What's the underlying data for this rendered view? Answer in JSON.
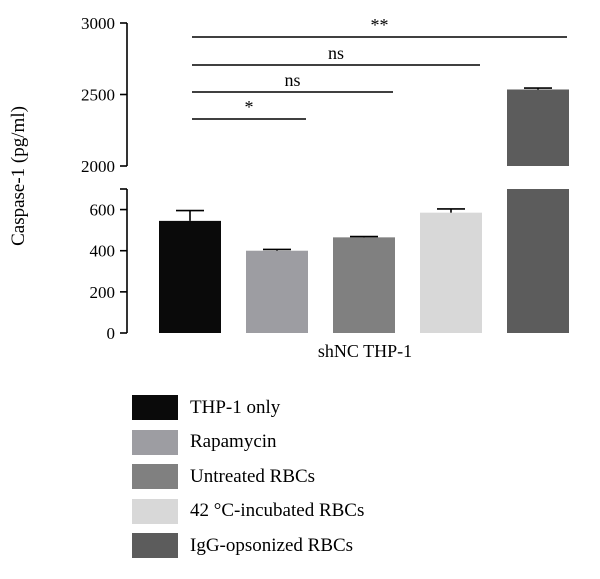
{
  "chart_data": {
    "type": "bar",
    "ylabel": "Caspase-1 (pg/ml)",
    "xlabel": "shNC THP-1",
    "broken_axis": {
      "lower_range": [
        0,
        700
      ],
      "upper_range": [
        2000,
        3000
      ],
      "lower_ticks": [
        0,
        200,
        400,
        600
      ],
      "upper_ticks": [
        2000,
        2500,
        3000
      ]
    },
    "series": [
      {
        "name": "THP-1 only",
        "value": 545,
        "error": 50,
        "color": "#0a0a0a"
      },
      {
        "name": "Rapamycin",
        "value": 400,
        "error": 6,
        "color": "#9d9da2"
      },
      {
        "name": "Untreated RBCs",
        "value": 465,
        "error": 4,
        "color": "#808080"
      },
      {
        "name": "42 °C-incubated RBCs",
        "value": 585,
        "error": 18,
        "color": "#d8d8d8"
      },
      {
        "name": "IgG-opsonized RBCs",
        "value": 2535,
        "error": 10,
        "color": "#5c5c5c"
      }
    ],
    "comparisons": [
      {
        "from": 0,
        "to": 1,
        "label": "*"
      },
      {
        "from": 0,
        "to": 2,
        "label": "ns"
      },
      {
        "from": 0,
        "to": 3,
        "label": "ns"
      },
      {
        "from": 0,
        "to": 4,
        "label": "**"
      }
    ],
    "legend_position": "bottom"
  }
}
